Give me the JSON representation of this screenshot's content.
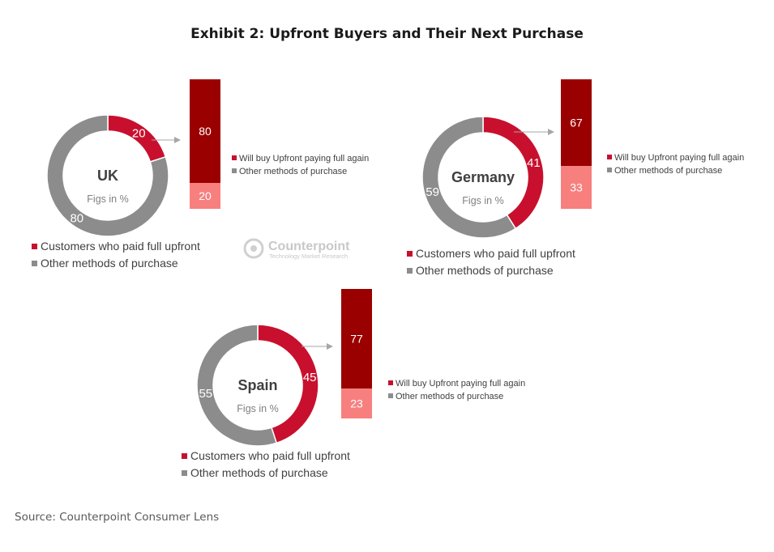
{
  "title": "Exhibit 2: Upfront Buyers and Their Next Purchase",
  "source": "Source: Counterpoint Consumer Lens",
  "logo": {
    "name": "Counterpoint",
    "tagline": "Technology Market Research"
  },
  "colors": {
    "upfront": "#c8102e",
    "other": "#8c8c8c",
    "bar_again": "#9b0000",
    "bar_other": "#f7807f"
  },
  "chart_data": [
    {
      "type": "pie",
      "title": "UK",
      "subtitle": "Figs in %",
      "slices": [
        {
          "label": "Customers who paid full upfront",
          "value": 20
        },
        {
          "label": "Other methods of purchase",
          "value": 80
        }
      ],
      "next_purchase": {
        "type": "bar",
        "stacked": true,
        "series": [
          {
            "name": "Will buy Upfront paying full again",
            "value": 80
          },
          {
            "name": "Other methods of purchase",
            "value": 20
          }
        ]
      }
    },
    {
      "type": "pie",
      "title": "Germany",
      "subtitle": "Figs in %",
      "slices": [
        {
          "label": "Customers who paid full upfront",
          "value": 41
        },
        {
          "label": "Other methods of purchase",
          "value": 59
        }
      ],
      "next_purchase": {
        "type": "bar",
        "stacked": true,
        "series": [
          {
            "name": "Will buy Upfront paying full again",
            "value": 67
          },
          {
            "name": "Other methods of purchase",
            "value": 33
          }
        ]
      }
    },
    {
      "type": "pie",
      "title": "Spain",
      "subtitle": "Figs in %",
      "slices": [
        {
          "label": "Customers who paid full upfront",
          "value": 45
        },
        {
          "label": "Other methods of purchase",
          "value": 55
        }
      ],
      "next_purchase": {
        "type": "bar",
        "stacked": true,
        "series": [
          {
            "name": "Will buy Upfront paying full again",
            "value": 77
          },
          {
            "name": "Other methods of purchase",
            "value": 23
          }
        ]
      }
    }
  ]
}
